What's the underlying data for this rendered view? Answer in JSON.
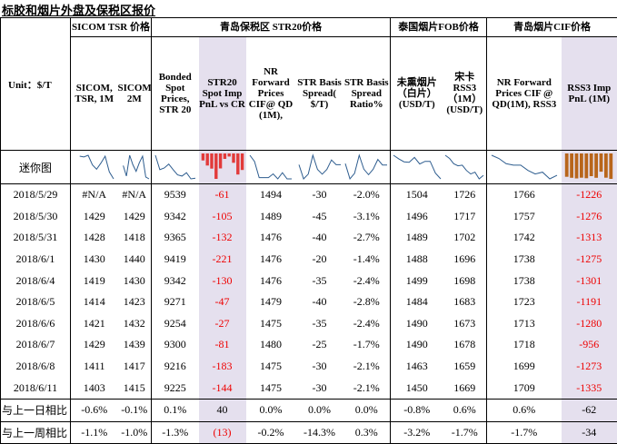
{
  "title": "标胶和烟片外盘及保税区报价",
  "groups": {
    "sicom": "SICOM TSR 价格",
    "qingdao_str20": "青岛保税区 STR20价格",
    "thai_fob": "泰国烟片FOB价格",
    "qingdao_cif": "青岛烟片CIF价格"
  },
  "unit_label": "Unit：$/T",
  "columns": [
    "SICOM, TSR, 1M",
    "SICOM,TSR, 2M",
    "Bonded Spot Prices, STR 20",
    "STR20 Spot Imp PnL vs CR",
    "NR Forward Prices CIF@ QD (1M),",
    "STR Basis Spread( $/T)",
    "STR Basis Spread Ratio%",
    "未熏烟片（白片）(USD/T)",
    "宋卡 RSS3 （1M） (USD/T)",
    "NR Forward Prices CIF @ QD(1M), RSS3",
    "RSS3 Imp PnL (1M)"
  ],
  "sparkline_label": "迷你图",
  "rows": [
    {
      "date": "2018/5/29",
      "v": [
        "#N/A",
        "#N/A",
        "9539",
        "-61",
        "1494",
        "-30",
        "-2.0%",
        "1504",
        "1726",
        "1766",
        "-1226"
      ]
    },
    {
      "date": "2018/5/30",
      "v": [
        "1429",
        "1429",
        "9342",
        "-105",
        "1489",
        "-45",
        "-3.1%",
        "1496",
        "1717",
        "1757",
        "-1276"
      ]
    },
    {
      "date": "2018/5/31",
      "v": [
        "1428",
        "1418",
        "9365",
        "-132",
        "1476",
        "-40",
        "-2.7%",
        "1489",
        "1702",
        "1742",
        "-1313"
      ]
    },
    {
      "date": "2018/6/1",
      "v": [
        "1430",
        "1440",
        "9419",
        "-221",
        "1476",
        "-20",
        "-1.4%",
        "1488",
        "1696",
        "1738",
        "-1275"
      ]
    },
    {
      "date": "2018/6/4",
      "v": [
        "1419",
        "1430",
        "9342",
        "-130",
        "1476",
        "-35",
        "-2.4%",
        "1499",
        "1698",
        "1738",
        "-1301"
      ]
    },
    {
      "date": "2018/6/5",
      "v": [
        "1414",
        "1423",
        "9271",
        "-47",
        "1479",
        "-40",
        "-2.8%",
        "1484",
        "1683",
        "1723",
        "-1191"
      ]
    },
    {
      "date": "2018/6/6",
      "v": [
        "1421",
        "1432",
        "9254",
        "-27",
        "1475",
        "-35",
        "-2.4%",
        "1490",
        "1673",
        "1713",
        "-1280"
      ]
    },
    {
      "date": "2018/6/7",
      "v": [
        "1429",
        "1439",
        "9300",
        "-81",
        "1480",
        "-25",
        "-1.7%",
        "1490",
        "1678",
        "1718",
        "-956"
      ]
    },
    {
      "date": "2018/6/8",
      "v": [
        "1411",
        "1417",
        "9216",
        "-183",
        "1475",
        "-30",
        "-2.1%",
        "1463",
        "1659",
        "1699",
        "-1273"
      ]
    },
    {
      "date": "2018/6/11",
      "v": [
        "1403",
        "1415",
        "9225",
        "-144",
        "1475",
        "-30",
        "-2.1%",
        "1450",
        "1669",
        "1709",
        "-1335"
      ]
    }
  ],
  "summary": [
    {
      "label": "与上一日相比",
      "v": [
        "-0.6%",
        "-0.1%",
        "0.1%",
        "40",
        "0.0%",
        "0.0%",
        "0.0%",
        "-0.8%",
        "0.6%",
        "0.6%",
        "-62"
      ]
    },
    {
      "label": "与上一周相比",
      "v": [
        "-1.1%",
        "-1.0%",
        "-1.3%",
        "(13)",
        "-0.2%",
        "-14.3%",
        "0.3%",
        "-3.2%",
        "-1.7%",
        "-1.7%",
        "-34"
      ]
    }
  ],
  "colors": {
    "highlight": "#e5e0ee",
    "negative": "#ee0000",
    "spark_line": "#2e5d8f",
    "spark_bar_red": "#e23a3a",
    "spark_bar_brown": "#b8651b"
  }
}
